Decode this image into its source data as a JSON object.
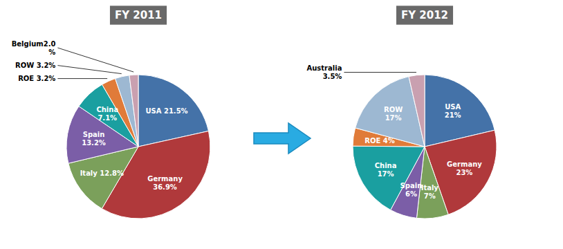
{
  "chart_data": [
    {
      "type": "pie",
      "title": "FY 2011",
      "values": [
        21.5,
        36.9,
        12.8,
        13.2,
        7.1,
        3.2,
        3.2,
        2.0
      ],
      "value_labels": [
        "USA 21.5%",
        "Germany\n36.9%",
        "Italy 12.8%",
        "Spain\n13.2%",
        "China\n7.1%",
        "ROE 3.2%",
        "ROW 3.2%",
        "Belgium2.0\n%"
      ],
      "colors": [
        "#4472a8",
        "#b0393b",
        "#7ba05b",
        "#7b5ea7",
        "#1a9fa0",
        "#e07b39",
        "#9db8d2",
        "#c9a0b0"
      ],
      "data_labels": true
    },
    {
      "type": "pie",
      "title": "FY 2012",
      "values": [
        21,
        23,
        7,
        6,
        17,
        4,
        17,
        3.5
      ],
      "value_labels": [
        "USA\n21%",
        "Germany\n23%",
        "Italy\n7%",
        "Spain\n6%",
        "China\n17%",
        "ROE 4%",
        "ROW\n17%",
        "Australia\n3.5%"
      ],
      "colors": [
        "#4472a8",
        "#b0393b",
        "#7ba05b",
        "#7b5ea7",
        "#1a9fa0",
        "#e07b39",
        "#9db8d2",
        "#c9a0b0"
      ],
      "data_labels": true
    }
  ]
}
